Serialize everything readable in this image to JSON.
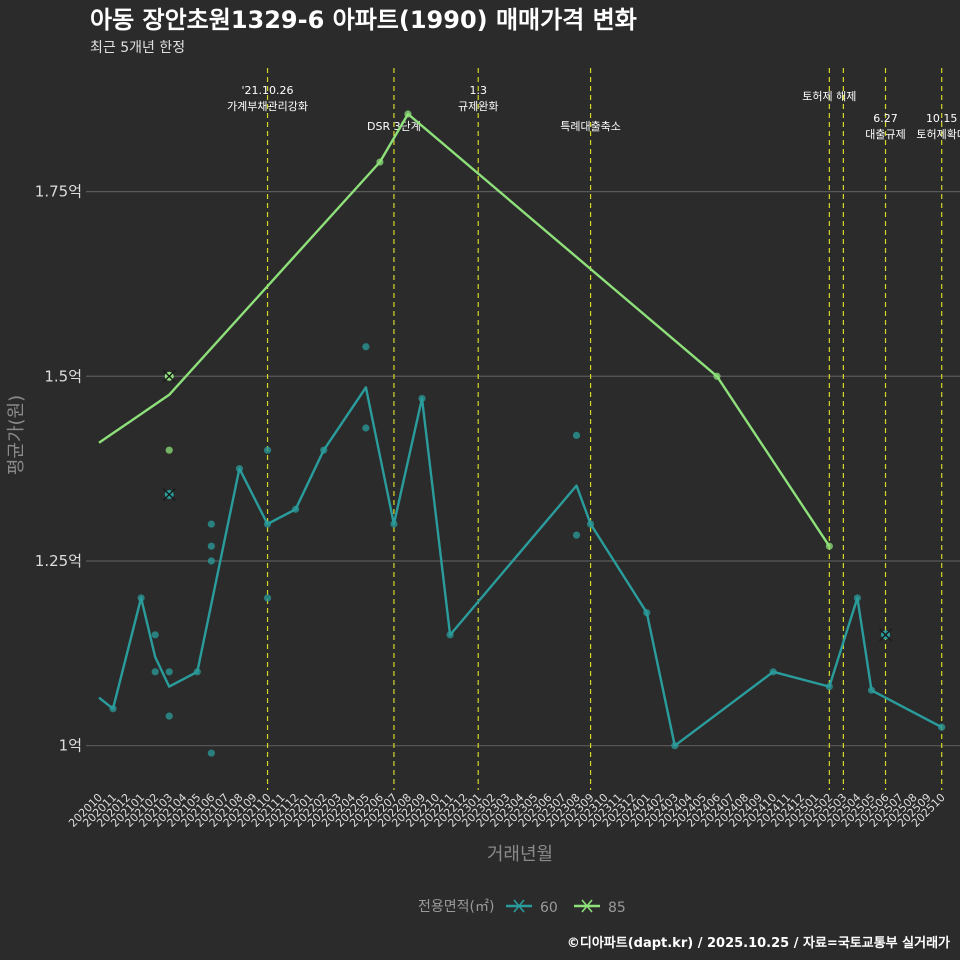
{
  "chart_data": {
    "type": "line",
    "title": "아동 장안초원1329-6 아파트(1990) 매매가격 변화",
    "subtitle": "최근 5개년 한정",
    "xlabel": "거래년월",
    "ylabel": "평균가(원)",
    "ylim": [
      0.94,
      1.92
    ],
    "yticks": [
      {
        "value": 1.0,
        "label": "1억"
      },
      {
        "value": 1.25,
        "label": "1.25억"
      },
      {
        "value": 1.5,
        "label": "1.5억"
      },
      {
        "value": 1.75,
        "label": "1.75억"
      }
    ],
    "x_months": [
      "202010",
      "202011",
      "202012",
      "202101",
      "202102",
      "202103",
      "202104",
      "202105",
      "202106",
      "202107",
      "202108",
      "202109",
      "202110",
      "202111",
      "202112",
      "202201",
      "202202",
      "202203",
      "202204",
      "202205",
      "202206",
      "202207",
      "202208",
      "202209",
      "202210",
      "202211",
      "202212",
      "202301",
      "202302",
      "202303",
      "202304",
      "202305",
      "202306",
      "202307",
      "202308",
      "202309",
      "202310",
      "202311",
      "202312",
      "202401",
      "202402",
      "202403",
      "202404",
      "202405",
      "202406",
      "202407",
      "202408",
      "202409",
      "202410",
      "202411",
      "202412",
      "202501",
      "202502",
      "202503",
      "202504",
      "202505",
      "202506",
      "202507",
      "202508",
      "202509",
      "202510"
    ],
    "events": [
      {
        "month": "202110",
        "lines": [
          "'21.10.26",
          "가계부채관리강화"
        ],
        "row": 0
      },
      {
        "month": "202207",
        "lines": [
          "DSR 3단계"
        ],
        "row": 2
      },
      {
        "month": "202301",
        "lines": [
          "1.3",
          "규제완화"
        ],
        "row": 0
      },
      {
        "month": "202309",
        "lines": [
          "특례대출축소"
        ],
        "row": 2
      },
      {
        "month": "202502",
        "lines": [
          "토허제 해제"
        ],
        "row": 1
      },
      {
        "month": "202503",
        "lines": [],
        "row": 1
      },
      {
        "month": "202506",
        "lines": [
          "6.27",
          "대출규제"
        ],
        "row": 3
      },
      {
        "month": "202510",
        "lines": [
          "10.15",
          "토허제확대"
        ],
        "row": 3
      }
    ],
    "series": [
      {
        "name": "60",
        "color": "#2b9c9c",
        "line": [
          [
            "202010",
            1.065
          ],
          [
            "202011",
            1.05
          ],
          [
            "202101",
            1.2
          ],
          [
            "202102",
            1.12
          ],
          [
            "202103",
            1.08
          ],
          [
            "202105",
            1.1
          ],
          [
            "202108",
            1.375
          ],
          [
            "202110",
            1.3
          ],
          [
            "202112",
            1.32
          ],
          [
            "202202",
            1.4
          ],
          [
            "202205",
            1.485
          ],
          [
            "202207",
            1.3
          ],
          [
            "202209",
            1.47
          ],
          [
            "202211",
            1.15
          ],
          [
            "202308",
            1.352
          ],
          [
            "202309",
            1.3
          ],
          [
            "202401",
            1.18
          ],
          [
            "202403",
            1.0
          ],
          [
            "202410",
            1.1
          ],
          [
            "202502",
            1.08
          ],
          [
            "202504",
            1.2
          ],
          [
            "202505",
            1.075
          ],
          [
            "202510",
            1.025
          ]
        ],
        "points": [
          [
            "202011",
            1.05
          ],
          [
            "202101",
            1.2
          ],
          [
            "202102",
            1.15
          ],
          [
            "202102",
            1.1
          ],
          [
            "202103",
            1.1
          ],
          [
            "202103",
            1.04
          ],
          [
            "202105",
            1.1
          ],
          [
            "202106",
            1.3
          ],
          [
            "202106",
            1.27
          ],
          [
            "202106",
            1.25
          ],
          [
            "202106",
            0.99
          ],
          [
            "202108",
            1.375
          ],
          [
            "202110",
            1.4
          ],
          [
            "202110",
            1.2
          ],
          [
            "202110",
            1.3
          ],
          [
            "202112",
            1.32
          ],
          [
            "202202",
            1.4
          ],
          [
            "202205",
            1.54
          ],
          [
            "202205",
            1.43
          ],
          [
            "202207",
            1.3
          ],
          [
            "202209",
            1.47
          ],
          [
            "202211",
            1.15
          ],
          [
            "202308",
            1.42
          ],
          [
            "202308",
            1.285
          ],
          [
            "202309",
            1.3
          ],
          [
            "202401",
            1.18
          ],
          [
            "202403",
            1.0
          ],
          [
            "202410",
            1.1
          ],
          [
            "202502",
            1.08
          ],
          [
            "202504",
            1.2
          ],
          [
            "202505",
            1.075
          ],
          [
            "202510",
            1.025
          ]
        ],
        "crosses": [
          [
            "202103",
            1.34
          ],
          [
            "202506",
            1.15
          ]
        ]
      },
      {
        "name": "85",
        "color": "#8ee07a",
        "line": [
          [
            "202010",
            1.41
          ],
          [
            "202103",
            1.475
          ],
          [
            "202206",
            1.79
          ],
          [
            "202208",
            1.855
          ],
          [
            "202406",
            1.5
          ],
          [
            "202502",
            1.27
          ]
        ],
        "points": [
          [
            "202103",
            1.5
          ],
          [
            "202103",
            1.4
          ],
          [
            "202206",
            1.79
          ],
          [
            "202208",
            1.855
          ],
          [
            "202406",
            1.5
          ],
          [
            "202502",
            1.27
          ]
        ],
        "crosses": [
          [
            "202103",
            1.5
          ]
        ]
      }
    ],
    "legend": {
      "title": "전용면적(㎡)",
      "position": "bottom"
    },
    "caption": "©디아파트(dapt.kr) / 2025.10.25 / 자료=국토교통부 실거래가"
  }
}
